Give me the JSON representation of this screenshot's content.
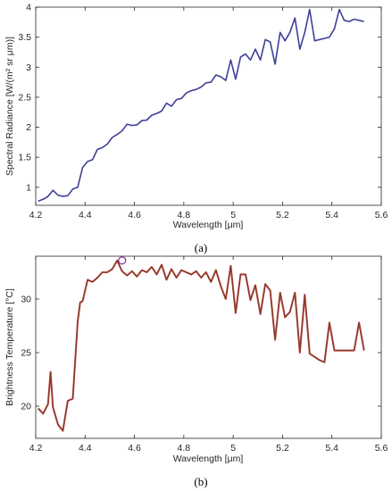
{
  "chart_data": [
    {
      "type": "line",
      "caption": "(a)",
      "xlabel": "Wavelength [μm]",
      "ylabel": "Spectral Radiance [W/(m² sr μm)]",
      "xlim": [
        4.2,
        5.6
      ],
      "ylim": [
        0.7,
        4
      ],
      "xticks": [
        "4.2",
        "4.4",
        "4.6",
        "4.8",
        "5",
        "5.2",
        "5.4",
        "5.6"
      ],
      "yticks": [
        "1",
        "1.5",
        "2",
        "2.5",
        "3",
        "3.5",
        "4"
      ],
      "grid": false,
      "colors": {
        "series": "#3f3f99"
      },
      "x": [
        4.21,
        4.23,
        4.25,
        4.27,
        4.29,
        4.31,
        4.33,
        4.35,
        4.37,
        4.39,
        4.41,
        4.43,
        4.45,
        4.47,
        4.49,
        4.51,
        4.53,
        4.55,
        4.57,
        4.59,
        4.61,
        4.63,
        4.65,
        4.67,
        4.69,
        4.71,
        4.73,
        4.75,
        4.77,
        4.79,
        4.81,
        4.83,
        4.85,
        4.87,
        4.89,
        4.91,
        4.93,
        4.95,
        4.97,
        4.99,
        5.01,
        5.03,
        5.05,
        5.07,
        5.09,
        5.11,
        5.13,
        5.15,
        5.17,
        5.19,
        5.21,
        5.23,
        5.25,
        5.27,
        5.29,
        5.31,
        5.33,
        5.35,
        5.37,
        5.39,
        5.41,
        5.43,
        5.45,
        5.47,
        5.49,
        5.51,
        5.53
      ],
      "values": [
        0.77,
        0.8,
        0.85,
        0.95,
        0.87,
        0.85,
        0.86,
        0.97,
        1.0,
        1.33,
        1.43,
        1.46,
        1.63,
        1.66,
        1.72,
        1.83,
        1.88,
        1.94,
        2.05,
        2.03,
        2.04,
        2.11,
        2.12,
        2.2,
        2.23,
        2.27,
        2.4,
        2.35,
        2.46,
        2.48,
        2.57,
        2.61,
        2.63,
        2.67,
        2.74,
        2.75,
        2.87,
        2.84,
        2.78,
        3.12,
        2.8,
        3.17,
        3.22,
        3.12,
        3.3,
        3.12,
        3.46,
        3.42,
        3.05,
        3.58,
        3.44,
        3.58,
        3.82,
        3.3,
        3.58,
        3.96,
        3.44,
        3.46,
        3.48,
        3.5,
        3.64,
        3.96,
        3.78,
        3.76,
        3.8,
        3.78,
        3.76
      ]
    },
    {
      "type": "line",
      "caption": "(b)",
      "xlabel": "Wavelength [μm]",
      "ylabel": "Brightness Temperature [°C]",
      "xlim": [
        4.2,
        5.6
      ],
      "ylim": [
        17,
        34
      ],
      "xticks": [
        "4.2",
        "4.4",
        "4.6",
        "4.8",
        "5",
        "5.2",
        "5.4",
        "5.6"
      ],
      "yticks": [
        "20",
        "25",
        "30"
      ],
      "grid": false,
      "colors": {
        "series": "#8b3a2a",
        "highlight": "#dd2222",
        "marker": "#7a2a8a"
      },
      "marker_point": [
        4.55,
        33.6
      ],
      "x": [
        4.21,
        4.23,
        4.25,
        4.26,
        4.27,
        4.29,
        4.31,
        4.33,
        4.35,
        4.37,
        4.38,
        4.39,
        4.41,
        4.43,
        4.45,
        4.47,
        4.49,
        4.51,
        4.53,
        4.55,
        4.57,
        4.59,
        4.61,
        4.63,
        4.65,
        4.67,
        4.69,
        4.71,
        4.73,
        4.75,
        4.77,
        4.79,
        4.81,
        4.83,
        4.85,
        4.87,
        4.89,
        4.91,
        4.93,
        4.95,
        4.97,
        4.99,
        5.01,
        5.03,
        5.05,
        5.07,
        5.09,
        5.11,
        5.13,
        5.15,
        5.17,
        5.19,
        5.21,
        5.23,
        5.25,
        5.27,
        5.29,
        5.31,
        5.33,
        5.35,
        5.37,
        5.39,
        5.41,
        5.43,
        5.45,
        5.47,
        5.49,
        5.51,
        5.53
      ],
      "values": [
        19.8,
        19.3,
        20.2,
        23.2,
        19.9,
        18.3,
        17.7,
        20.5,
        20.7,
        27.9,
        29.7,
        29.8,
        31.8,
        31.6,
        32.0,
        32.5,
        32.5,
        32.8,
        33.6,
        32.6,
        32.2,
        32.6,
        32.1,
        32.7,
        32.5,
        33.0,
        32.3,
        33.2,
        31.8,
        32.8,
        32.0,
        32.7,
        32.5,
        32.3,
        32.6,
        32.0,
        32.5,
        31.6,
        32.7,
        31.2,
        30.0,
        33.1,
        28.7,
        32.3,
        32.3,
        29.9,
        31.3,
        28.6,
        31.4,
        30.8,
        26.2,
        30.6,
        28.3,
        28.8,
        30.6,
        25.0,
        30.4,
        24.9,
        24.6,
        24.3,
        24.1,
        27.8,
        25.2,
        25.2,
        25.2,
        25.2,
        25.2,
        27.8,
        25.2
      ]
    }
  ]
}
